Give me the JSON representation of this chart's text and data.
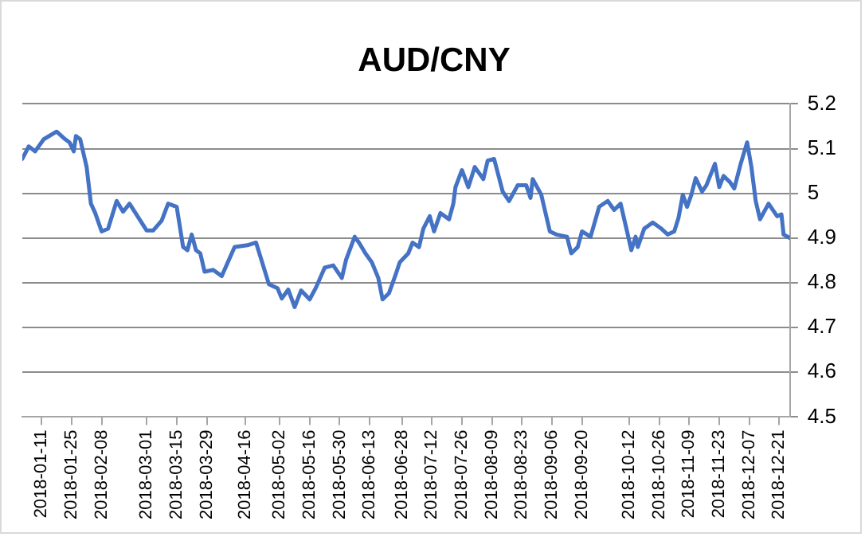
{
  "chart_data": {
    "type": "line",
    "title": "AUD/CNY",
    "x": [
      "2018-01-02",
      "2018-01-05",
      "2018-01-08",
      "2018-01-12",
      "2018-01-18",
      "2018-01-22",
      "2018-01-24",
      "2018-01-26",
      "2018-01-27",
      "2018-01-29",
      "2018-02-01",
      "2018-02-03",
      "2018-02-05",
      "2018-02-08",
      "2018-02-11",
      "2018-02-15",
      "2018-02-18",
      "2018-02-21",
      "2018-03-01",
      "2018-03-04",
      "2018-03-08",
      "2018-03-11",
      "2018-03-15",
      "2018-03-18",
      "2018-03-20",
      "2018-03-22",
      "2018-03-24",
      "2018-03-26",
      "2018-03-28",
      "2018-04-01",
      "2018-04-05",
      "2018-04-11",
      "2018-04-17",
      "2018-04-21",
      "2018-04-27",
      "2018-05-01",
      "2018-05-03",
      "2018-05-06",
      "2018-05-09",
      "2018-05-12",
      "2018-05-16",
      "2018-05-19",
      "2018-05-23",
      "2018-05-27",
      "2018-05-31",
      "2018-06-02",
      "2018-06-06",
      "2018-06-08",
      "2018-06-11",
      "2018-06-14",
      "2018-06-17",
      "2018-06-19",
      "2018-06-22",
      "2018-06-25",
      "2018-06-27",
      "2018-07-01",
      "2018-07-03",
      "2018-07-06",
      "2018-07-08",
      "2018-07-11",
      "2018-07-13",
      "2018-07-16",
      "2018-07-20",
      "2018-07-22",
      "2018-07-23",
      "2018-07-26",
      "2018-07-29",
      "2018-08-01",
      "2018-08-05",
      "2018-08-07",
      "2018-08-10",
      "2018-08-14",
      "2018-08-17",
      "2018-08-21",
      "2018-08-25",
      "2018-08-27",
      "2018-08-28",
      "2018-09-01",
      "2018-09-05",
      "2018-09-08",
      "2018-09-13",
      "2018-09-15",
      "2018-09-18",
      "2018-09-20",
      "2018-09-24",
      "2018-09-28",
      "2018-10-02",
      "2018-10-05",
      "2018-10-08",
      "2018-10-11",
      "2018-10-13",
      "2018-10-15",
      "2018-10-16",
      "2018-10-19",
      "2018-10-23",
      "2018-10-27",
      "2018-10-30",
      "2018-11-02",
      "2018-11-04",
      "2018-11-06",
      "2018-11-08",
      "2018-11-10",
      "2018-11-12",
      "2018-11-15",
      "2018-11-17",
      "2018-11-21",
      "2018-11-23",
      "2018-11-25",
      "2018-11-28",
      "2018-11-30",
      "2018-12-03",
      "2018-12-06",
      "2018-12-08",
      "2018-12-10",
      "2018-12-12",
      "2018-12-16",
      "2018-12-20",
      "2018-12-22",
      "2018-12-23",
      "2018-12-26"
    ],
    "series": [
      {
        "color": "#4472c4",
        "values": [
          5.077,
          5.105,
          5.094,
          5.121,
          5.138,
          5.121,
          5.114,
          5.094,
          5.128,
          5.121,
          5.059,
          4.977,
          4.956,
          4.915,
          4.921,
          4.983,
          4.959,
          4.977,
          4.917,
          4.917,
          4.939,
          4.977,
          4.97,
          4.88,
          4.873,
          4.908,
          4.873,
          4.866,
          4.825,
          4.829,
          4.815,
          4.88,
          4.884,
          4.89,
          4.797,
          4.788,
          4.765,
          4.785,
          4.746,
          4.783,
          4.763,
          4.79,
          4.834,
          4.839,
          4.811,
          4.852,
          4.903,
          4.89,
          4.866,
          4.846,
          4.811,
          4.763,
          4.777,
          4.817,
          4.846,
          4.866,
          4.89,
          4.88,
          4.921,
          4.949,
          4.915,
          4.956,
          4.942,
          4.977,
          5.014,
          5.052,
          5.014,
          5.059,
          5.032,
          5.073,
          5.077,
          5.004,
          4.983,
          5.018,
          5.018,
          4.99,
          5.032,
          4.997,
          4.915,
          4.908,
          4.903,
          4.866,
          4.88,
          4.915,
          4.903,
          4.97,
          4.983,
          4.963,
          4.977,
          4.915,
          4.873,
          4.903,
          4.88,
          4.921,
          4.935,
          4.921,
          4.908,
          4.915,
          4.945,
          4.997,
          4.97,
          4.997,
          5.034,
          5.004,
          5.018,
          5.066,
          5.014,
          5.039,
          5.025,
          5.011,
          5.066,
          5.114,
          5.059,
          4.983,
          4.942,
          4.977,
          4.949,
          4.953,
          4.908,
          4.9
        ]
      }
    ],
    "xlim": [
      "2018-01-02",
      "2018-12-26"
    ],
    "xticks": [
      "2018-01-11",
      "2018-01-25",
      "2018-02-08",
      "2018-03-01",
      "2018-03-15",
      "2018-03-29",
      "2018-04-16",
      "2018-05-02",
      "2018-05-16",
      "2018-05-30",
      "2018-06-13",
      "2018-06-28",
      "2018-07-12",
      "2018-07-26",
      "2018-08-09",
      "2018-08-23",
      "2018-09-06",
      "2018-09-20",
      "2018-10-12",
      "2018-10-26",
      "2018-11-09",
      "2018-11-23",
      "2018-12-07",
      "2018-12-21"
    ],
    "ylim": [
      4.5,
      5.2
    ],
    "yticks": [
      4.5,
      4.6,
      4.7,
      4.8,
      4.9,
      5,
      5.1,
      5.2
    ],
    "grid": "y",
    "legend": false,
    "marker": "none",
    "line_style": "solid"
  }
}
